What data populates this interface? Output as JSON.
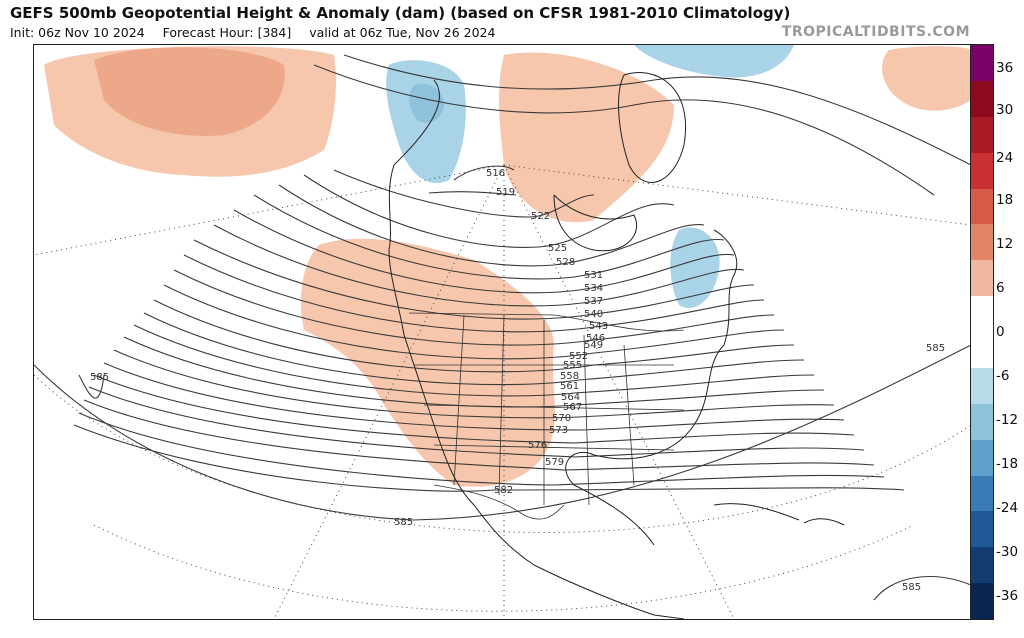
{
  "header": {
    "title": "GEFS 500mb Geopotential Height & Anomaly (dam) (based on CFSR 1981-2010 Climatology)",
    "init": "Init: 06z Nov 10 2024",
    "forecast_hour": "Forecast Hour: [384]",
    "valid": "valid at 06z Tue, Nov 26 2024",
    "credit": "TROPICALTIDBITS.COM"
  },
  "colorbar": {
    "labels": [
      "36",
      "30",
      "24",
      "18",
      "12",
      "6",
      "0",
      "-6",
      "-12",
      "-18",
      "-24",
      "-30",
      "-36"
    ],
    "colors": [
      "#7b0068",
      "#8c0a1e",
      "#a81b24",
      "#c93033",
      "#d85947",
      "#e4856a",
      "#f0b7a1",
      "#ffffff",
      "#ffffff",
      "#b7dbe9",
      "#8ec2db",
      "#5e9fcc",
      "#3b7bb5",
      "#1f5896",
      "#143c73",
      "#0b2553"
    ]
  },
  "map": {
    "contour_labels": [
      "516",
      "519",
      "522",
      "525",
      "528",
      "531",
      "534",
      "537",
      "540",
      "543",
      "546",
      "549",
      "552",
      "555",
      "558",
      "561",
      "564",
      "567",
      "570",
      "573",
      "576",
      "579",
      "582",
      "585",
      "585",
      "585",
      "585"
    ],
    "colors": {
      "positive_anomaly": "#f6c6ad",
      "negative_anomaly": "#a9d3e6",
      "contour": "#3a3a3a",
      "coast": "#222222"
    }
  }
}
